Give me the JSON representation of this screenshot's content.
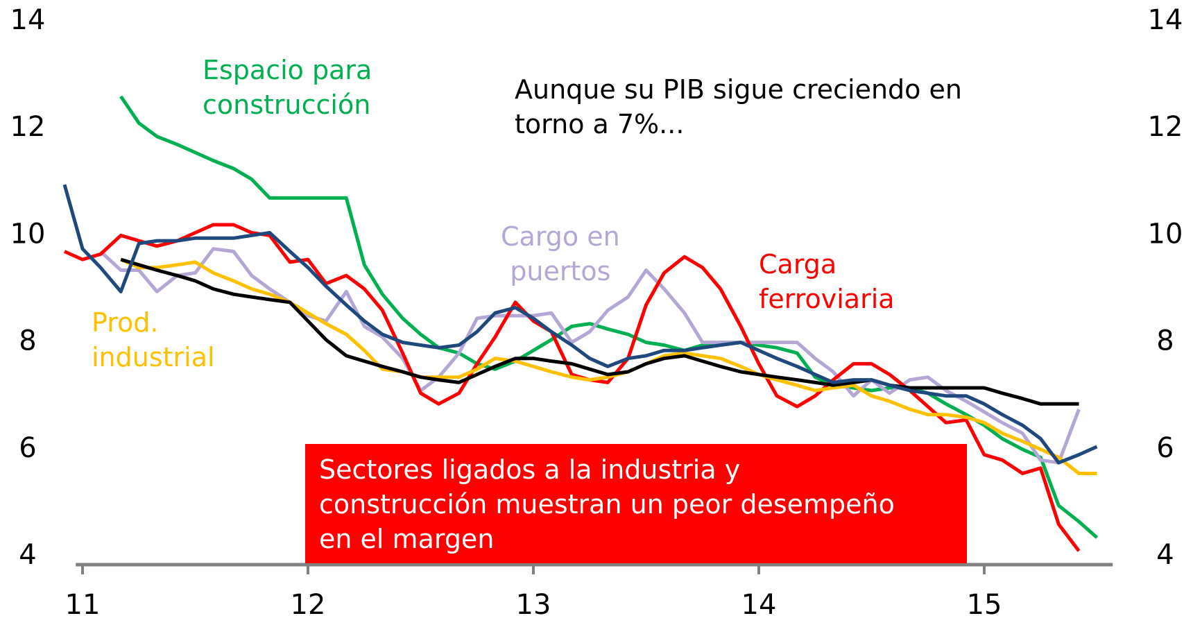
{
  "chart_data": {
    "type": "line",
    "x": [
      10.92,
      11.0,
      11.08,
      11.17,
      11.25,
      11.33,
      11.42,
      11.5,
      11.58,
      11.67,
      11.75,
      11.83,
      11.92,
      12.0,
      12.08,
      12.17,
      12.25,
      12.33,
      12.42,
      12.5,
      12.58,
      12.67,
      12.75,
      12.83,
      12.92,
      13.0,
      13.08,
      13.17,
      13.25,
      13.33,
      13.42,
      13.5,
      13.58,
      13.67,
      13.75,
      13.83,
      13.92,
      14.0,
      14.08,
      14.17,
      14.25,
      14.33,
      14.42,
      14.5,
      14.58,
      14.67,
      14.75,
      14.83,
      14.92,
      15.0,
      15.08,
      15.17,
      15.25,
      15.33,
      15.42,
      15.5
    ],
    "xlim": [
      10.97,
      15.57
    ],
    "xticks": [
      11,
      12,
      13,
      14,
      15
    ],
    "ylim": [
      4,
      14
    ],
    "yticks": [
      4,
      6,
      8,
      10,
      12,
      14
    ],
    "annotations": [
      {
        "text": "Aunque su PIB sigue creciendo en\ntorno a 7%...",
        "color": "#000000"
      },
      {
        "text": "Sectores ligados a la industria y\nconstrucción muestran un peor desempeño\nen el margen",
        "color": "#ffffff",
        "background": "#ff0000"
      }
    ],
    "series": [
      {
        "name": "Espacio para\nconstrucción",
        "color": "#00b050",
        "values": [
          null,
          null,
          null,
          12.6,
          12.1,
          11.85,
          11.7,
          11.55,
          11.4,
          11.25,
          11.05,
          10.7,
          10.7,
          10.7,
          10.7,
          10.7,
          9.45,
          8.9,
          8.45,
          8.15,
          7.9,
          7.8,
          7.6,
          7.5,
          7.65,
          7.85,
          8.05,
          8.3,
          8.35,
          8.25,
          8.15,
          8.0,
          7.95,
          7.85,
          7.95,
          8.0,
          8.0,
          7.95,
          7.9,
          7.8,
          7.35,
          7.2,
          7.15,
          7.1,
          7.15,
          7.15,
          7.05,
          6.85,
          6.65,
          6.45,
          6.2,
          6.0,
          5.85,
          4.95,
          4.65,
          4.35
        ]
      },
      {
        "name": "Cargo en\npuertos",
        "color": "#b4a7d6",
        "values": [
          null,
          null,
          9.7,
          9.35,
          9.35,
          8.95,
          9.25,
          9.3,
          9.75,
          9.7,
          9.25,
          9.0,
          8.75,
          8.5,
          8.4,
          8.95,
          8.3,
          8.1,
          7.7,
          7.1,
          7.35,
          7.8,
          8.45,
          8.5,
          8.5,
          8.5,
          8.55,
          8.0,
          8.2,
          8.6,
          8.85,
          9.35,
          9.0,
          8.55,
          8.0,
          8.0,
          8.0,
          8.0,
          8.0,
          8.0,
          7.7,
          7.45,
          7.0,
          7.3,
          7.05,
          7.3,
          7.35,
          7.1,
          6.9,
          6.7,
          6.5,
          6.3,
          5.8,
          5.75,
          6.75,
          null
        ]
      },
      {
        "name": "Carga\nferroviaria",
        "color": "#ff0000",
        "values": [
          9.7,
          9.55,
          9.65,
          10.0,
          9.9,
          9.8,
          9.9,
          10.05,
          10.2,
          10.2,
          10.05,
          10.0,
          9.5,
          9.55,
          9.1,
          9.25,
          9.0,
          8.6,
          7.8,
          7.05,
          6.85,
          7.05,
          7.6,
          8.1,
          8.75,
          8.4,
          8.2,
          7.4,
          7.3,
          7.25,
          7.7,
          8.7,
          9.3,
          9.6,
          9.4,
          9.0,
          8.3,
          7.6,
          7.0,
          6.8,
          7.0,
          7.3,
          7.6,
          7.6,
          7.4,
          7.1,
          6.8,
          6.5,
          6.55,
          5.9,
          5.8,
          5.55,
          5.65,
          4.6,
          4.1,
          null
        ]
      },
      {
        "name": "Prod.\nindustrial",
        "color": "#ffc000",
        "values": [
          null,
          null,
          null,
          9.55,
          9.4,
          9.4,
          9.45,
          9.5,
          9.3,
          9.15,
          9.0,
          8.9,
          8.75,
          8.55,
          8.35,
          8.15,
          7.85,
          7.5,
          7.45,
          7.35,
          7.35,
          7.35,
          7.5,
          7.7,
          7.65,
          7.55,
          7.45,
          7.35,
          7.3,
          7.35,
          7.45,
          7.6,
          7.75,
          7.8,
          7.75,
          7.7,
          7.55,
          7.4,
          7.3,
          7.2,
          7.1,
          7.15,
          7.2,
          7.0,
          6.9,
          6.75,
          6.65,
          6.65,
          6.6,
          6.5,
          6.3,
          6.15,
          6.0,
          5.85,
          5.55,
          5.55
        ]
      },
      {
        "name": null,
        "color": "#000000",
        "values": [
          null,
          null,
          null,
          9.55,
          9.45,
          9.35,
          9.25,
          9.15,
          9.0,
          8.9,
          8.85,
          8.8,
          8.75,
          8.4,
          8.05,
          7.75,
          7.65,
          7.55,
          7.45,
          7.35,
          7.3,
          7.25,
          7.4,
          7.55,
          7.7,
          7.7,
          7.65,
          7.6,
          7.5,
          7.4,
          7.45,
          7.6,
          7.7,
          7.75,
          7.65,
          7.55,
          7.45,
          7.4,
          7.35,
          7.3,
          7.25,
          7.2,
          7.25,
          7.3,
          7.2,
          7.15,
          7.15,
          7.15,
          7.15,
          7.15,
          7.05,
          6.95,
          6.85,
          6.85,
          6.85,
          null
        ]
      },
      {
        "name": null,
        "color": "#1f497d",
        "values": [
          10.95,
          9.75,
          9.4,
          8.95,
          9.85,
          9.9,
          9.9,
          9.95,
          9.95,
          9.95,
          10.0,
          10.05,
          9.7,
          9.4,
          9.05,
          8.7,
          8.4,
          8.15,
          8.0,
          7.95,
          7.9,
          7.95,
          8.2,
          8.55,
          8.65,
          8.45,
          8.2,
          7.95,
          7.7,
          7.55,
          7.7,
          7.75,
          7.85,
          7.85,
          7.9,
          7.95,
          8.0,
          7.85,
          7.7,
          7.55,
          7.4,
          7.25,
          7.3,
          7.3,
          7.2,
          7.1,
          7.05,
          7.0,
          7.0,
          6.85,
          6.65,
          6.45,
          6.2,
          5.75,
          5.9,
          6.05
        ]
      }
    ]
  }
}
